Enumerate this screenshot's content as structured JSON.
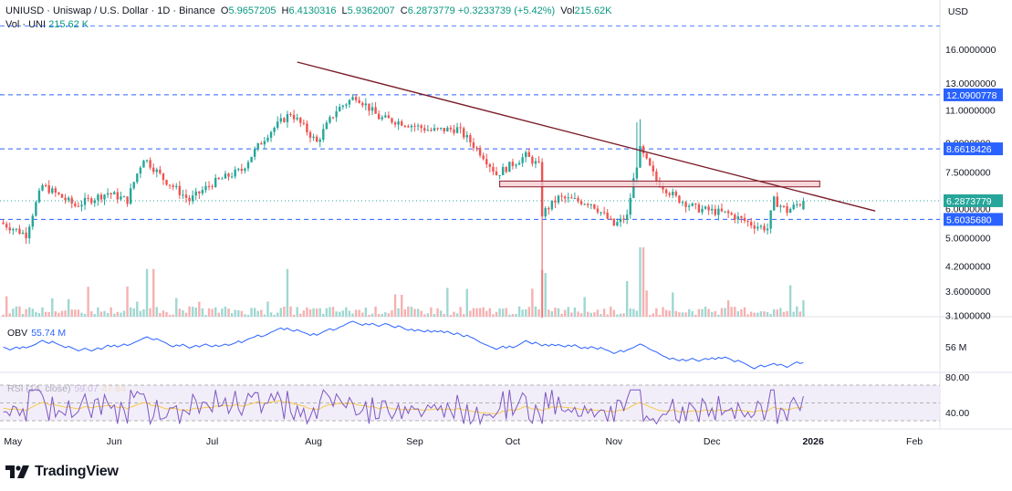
{
  "header": {
    "symbol": "UNIUSD · Uniswap / U.S. Dollar · 1D · Binance",
    "o_label": "O",
    "o_value": "5.9657205",
    "h_label": "H",
    "h_value": "6.4130316",
    "l_label": "L",
    "l_value": "5.9362007",
    "c_label": "C",
    "c_value": "6.2873779",
    "change": "+0.3233739 (+5.42%)",
    "vol_label": "Vol",
    "vol_value": "215.62K",
    "vol_line_label": "Vol · UNI",
    "vol_line_value": "215.62 K"
  },
  "currency": "USD",
  "obv": {
    "label": "OBV",
    "value": "55.74 M",
    "axis_tick": "56 M"
  },
  "rsi": {
    "label": "RSI (14, close)",
    "value": "59.07",
    "ma_value": "47.84",
    "axis_ticks": [
      "80.00",
      "40.00"
    ]
  },
  "brand": {
    "name": "TradingView"
  },
  "colors": {
    "up": "#26a69a",
    "down": "#ef5350",
    "vol_up": "#9fd8d2",
    "vol_down": "#f6b1b1",
    "level_line": "#2962ff",
    "trendline": "#7b1f2a",
    "zone_fill": "#f3c9cf",
    "zone_stroke": "#8b1a2b",
    "obv": "#2962ff",
    "rsi": "#7e57c2",
    "rsi_ma": "#f7c948",
    "rsi_band": "#ede7f6",
    "price_tag": "#26a69a",
    "level_tag": "#2962ff"
  },
  "chart_data": {
    "type": "candlestick",
    "x_labels": [
      "May",
      "Jun",
      "Jul",
      "Aug",
      "Sep",
      "Oct",
      "Nov",
      "Dec",
      "2026",
      "Feb"
    ],
    "y_axis_ticks": [
      "16.0000000",
      "13.0000000",
      "11.0000000",
      "9.0000000",
      "7.5000000",
      "6.0000000",
      "5.0000000",
      "4.2000000",
      "3.6000000",
      "3.1000000"
    ],
    "y_scale": "log",
    "price_levels": [
      "12.0900778",
      "8.6618426",
      "5.6035680"
    ],
    "current_price": "6.2873779",
    "price_path": [
      {
        "date": "2025-04-27",
        "close": 5.5
      },
      {
        "date": "2025-05-05",
        "close": 5.1
      },
      {
        "date": "2025-05-10",
        "close": 6.9
      },
      {
        "date": "2025-05-20",
        "close": 6.1
      },
      {
        "date": "2025-05-30",
        "close": 6.6
      },
      {
        "date": "2025-06-05",
        "close": 6.3
      },
      {
        "date": "2025-06-10",
        "close": 8.2
      },
      {
        "date": "2025-06-16",
        "close": 7.2
      },
      {
        "date": "2025-06-24",
        "close": 6.3
      },
      {
        "date": "2025-07-01",
        "close": 7.0
      },
      {
        "date": "2025-07-10",
        "close": 7.6
      },
      {
        "date": "2025-07-18",
        "close": 9.5
      },
      {
        "date": "2025-07-25",
        "close": 10.8
      },
      {
        "date": "2025-08-02",
        "close": 9.0
      },
      {
        "date": "2025-08-08",
        "close": 11.0
      },
      {
        "date": "2025-08-14",
        "close": 12.0
      },
      {
        "date": "2025-08-21",
        "close": 10.5
      },
      {
        "date": "2025-08-28",
        "close": 10.2
      },
      {
        "date": "2025-09-06",
        "close": 9.7
      },
      {
        "date": "2025-09-14",
        "close": 9.8
      },
      {
        "date": "2025-09-22",
        "close": 8.3
      },
      {
        "date": "2025-09-26",
        "close": 7.4
      },
      {
        "date": "2025-10-05",
        "close": 8.3
      },
      {
        "date": "2025-10-09",
        "close": 7.8
      },
      {
        "date": "2025-10-10",
        "close": 5.8
      },
      {
        "date": "2025-10-15",
        "close": 6.4
      },
      {
        "date": "2025-10-25",
        "close": 6.2
      },
      {
        "date": "2025-11-01",
        "close": 5.4
      },
      {
        "date": "2025-11-05",
        "close": 5.7
      },
      {
        "date": "2025-11-09",
        "close": 8.6
      },
      {
        "date": "2025-11-14",
        "close": 7.1
      },
      {
        "date": "2025-11-20",
        "close": 6.4
      },
      {
        "date": "2025-11-26",
        "close": 6.0
      },
      {
        "date": "2025-12-06",
        "close": 5.8
      },
      {
        "date": "2025-12-14",
        "close": 5.4
      },
      {
        "date": "2025-12-18",
        "close": 5.3
      },
      {
        "date": "2025-12-20",
        "close": 6.3
      },
      {
        "date": "2025-12-24",
        "close": 5.9
      },
      {
        "date": "2025-12-29",
        "close": 6.29
      }
    ],
    "annotations": [
      {
        "type": "descending_trendline",
        "start": {
          "date": "2025-07-27",
          "price": 14.8
        },
        "end": {
          "date": "2026-01-20",
          "price": 5.9
        }
      },
      {
        "type": "resistance_zone",
        "from": "2025-09-27",
        "to": "2026-01-03",
        "price_low": 6.85,
        "price_high": 7.1
      }
    ]
  }
}
